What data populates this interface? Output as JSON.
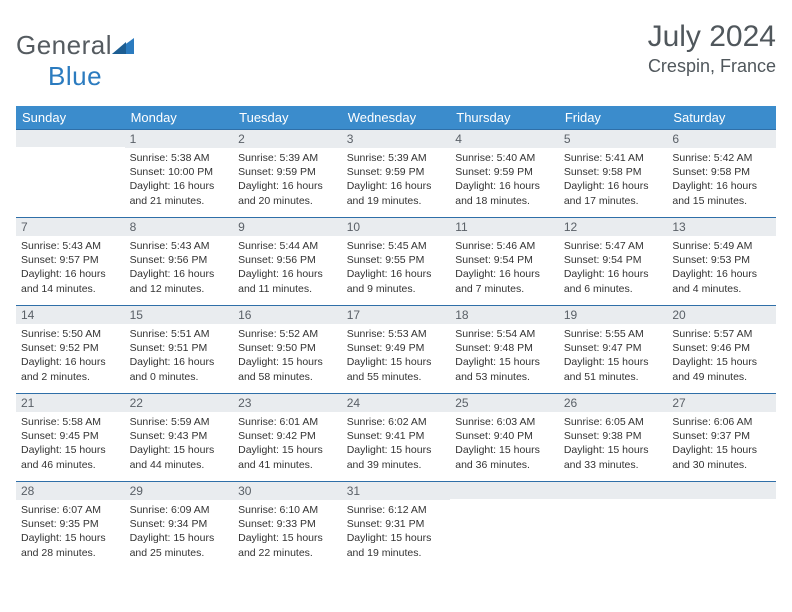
{
  "logo": {
    "word1": "General",
    "word2": "Blue"
  },
  "title": {
    "month_year": "July 2024",
    "location": "Crespin, France"
  },
  "colors": {
    "header_bg": "#3b8ccc",
    "daybar_bg": "#e9ecef",
    "daybar_border": "#2f6fa8",
    "text_main": "#333333",
    "text_muted": "#50575c",
    "logo_gray": "#555b60",
    "logo_blue": "#2b7bbf"
  },
  "days_of_week": [
    "Sunday",
    "Monday",
    "Tuesday",
    "Wednesday",
    "Thursday",
    "Friday",
    "Saturday"
  ],
  "weeks": [
    [
      {
        "n": "",
        "sr": "",
        "ss": "",
        "dl": ""
      },
      {
        "n": "1",
        "sr": "Sunrise: 5:38 AM",
        "ss": "Sunset: 10:00 PM",
        "dl": "Daylight: 16 hours and 21 minutes."
      },
      {
        "n": "2",
        "sr": "Sunrise: 5:39 AM",
        "ss": "Sunset: 9:59 PM",
        "dl": "Daylight: 16 hours and 20 minutes."
      },
      {
        "n": "3",
        "sr": "Sunrise: 5:39 AM",
        "ss": "Sunset: 9:59 PM",
        "dl": "Daylight: 16 hours and 19 minutes."
      },
      {
        "n": "4",
        "sr": "Sunrise: 5:40 AM",
        "ss": "Sunset: 9:59 PM",
        "dl": "Daylight: 16 hours and 18 minutes."
      },
      {
        "n": "5",
        "sr": "Sunrise: 5:41 AM",
        "ss": "Sunset: 9:58 PM",
        "dl": "Daylight: 16 hours and 17 minutes."
      },
      {
        "n": "6",
        "sr": "Sunrise: 5:42 AM",
        "ss": "Sunset: 9:58 PM",
        "dl": "Daylight: 16 hours and 15 minutes."
      }
    ],
    [
      {
        "n": "7",
        "sr": "Sunrise: 5:43 AM",
        "ss": "Sunset: 9:57 PM",
        "dl": "Daylight: 16 hours and 14 minutes."
      },
      {
        "n": "8",
        "sr": "Sunrise: 5:43 AM",
        "ss": "Sunset: 9:56 PM",
        "dl": "Daylight: 16 hours and 12 minutes."
      },
      {
        "n": "9",
        "sr": "Sunrise: 5:44 AM",
        "ss": "Sunset: 9:56 PM",
        "dl": "Daylight: 16 hours and 11 minutes."
      },
      {
        "n": "10",
        "sr": "Sunrise: 5:45 AM",
        "ss": "Sunset: 9:55 PM",
        "dl": "Daylight: 16 hours and 9 minutes."
      },
      {
        "n": "11",
        "sr": "Sunrise: 5:46 AM",
        "ss": "Sunset: 9:54 PM",
        "dl": "Daylight: 16 hours and 7 minutes."
      },
      {
        "n": "12",
        "sr": "Sunrise: 5:47 AM",
        "ss": "Sunset: 9:54 PM",
        "dl": "Daylight: 16 hours and 6 minutes."
      },
      {
        "n": "13",
        "sr": "Sunrise: 5:49 AM",
        "ss": "Sunset: 9:53 PM",
        "dl": "Daylight: 16 hours and 4 minutes."
      }
    ],
    [
      {
        "n": "14",
        "sr": "Sunrise: 5:50 AM",
        "ss": "Sunset: 9:52 PM",
        "dl": "Daylight: 16 hours and 2 minutes."
      },
      {
        "n": "15",
        "sr": "Sunrise: 5:51 AM",
        "ss": "Sunset: 9:51 PM",
        "dl": "Daylight: 16 hours and 0 minutes."
      },
      {
        "n": "16",
        "sr": "Sunrise: 5:52 AM",
        "ss": "Sunset: 9:50 PM",
        "dl": "Daylight: 15 hours and 58 minutes."
      },
      {
        "n": "17",
        "sr": "Sunrise: 5:53 AM",
        "ss": "Sunset: 9:49 PM",
        "dl": "Daylight: 15 hours and 55 minutes."
      },
      {
        "n": "18",
        "sr": "Sunrise: 5:54 AM",
        "ss": "Sunset: 9:48 PM",
        "dl": "Daylight: 15 hours and 53 minutes."
      },
      {
        "n": "19",
        "sr": "Sunrise: 5:55 AM",
        "ss": "Sunset: 9:47 PM",
        "dl": "Daylight: 15 hours and 51 minutes."
      },
      {
        "n": "20",
        "sr": "Sunrise: 5:57 AM",
        "ss": "Sunset: 9:46 PM",
        "dl": "Daylight: 15 hours and 49 minutes."
      }
    ],
    [
      {
        "n": "21",
        "sr": "Sunrise: 5:58 AM",
        "ss": "Sunset: 9:45 PM",
        "dl": "Daylight: 15 hours and 46 minutes."
      },
      {
        "n": "22",
        "sr": "Sunrise: 5:59 AM",
        "ss": "Sunset: 9:43 PM",
        "dl": "Daylight: 15 hours and 44 minutes."
      },
      {
        "n": "23",
        "sr": "Sunrise: 6:01 AM",
        "ss": "Sunset: 9:42 PM",
        "dl": "Daylight: 15 hours and 41 minutes."
      },
      {
        "n": "24",
        "sr": "Sunrise: 6:02 AM",
        "ss": "Sunset: 9:41 PM",
        "dl": "Daylight: 15 hours and 39 minutes."
      },
      {
        "n": "25",
        "sr": "Sunrise: 6:03 AM",
        "ss": "Sunset: 9:40 PM",
        "dl": "Daylight: 15 hours and 36 minutes."
      },
      {
        "n": "26",
        "sr": "Sunrise: 6:05 AM",
        "ss": "Sunset: 9:38 PM",
        "dl": "Daylight: 15 hours and 33 minutes."
      },
      {
        "n": "27",
        "sr": "Sunrise: 6:06 AM",
        "ss": "Sunset: 9:37 PM",
        "dl": "Daylight: 15 hours and 30 minutes."
      }
    ],
    [
      {
        "n": "28",
        "sr": "Sunrise: 6:07 AM",
        "ss": "Sunset: 9:35 PM",
        "dl": "Daylight: 15 hours and 28 minutes."
      },
      {
        "n": "29",
        "sr": "Sunrise: 6:09 AM",
        "ss": "Sunset: 9:34 PM",
        "dl": "Daylight: 15 hours and 25 minutes."
      },
      {
        "n": "30",
        "sr": "Sunrise: 6:10 AM",
        "ss": "Sunset: 9:33 PM",
        "dl": "Daylight: 15 hours and 22 minutes."
      },
      {
        "n": "31",
        "sr": "Sunrise: 6:12 AM",
        "ss": "Sunset: 9:31 PM",
        "dl": "Daylight: 15 hours and 19 minutes."
      },
      {
        "n": "",
        "sr": "",
        "ss": "",
        "dl": ""
      },
      {
        "n": "",
        "sr": "",
        "ss": "",
        "dl": ""
      },
      {
        "n": "",
        "sr": "",
        "ss": "",
        "dl": ""
      }
    ]
  ]
}
